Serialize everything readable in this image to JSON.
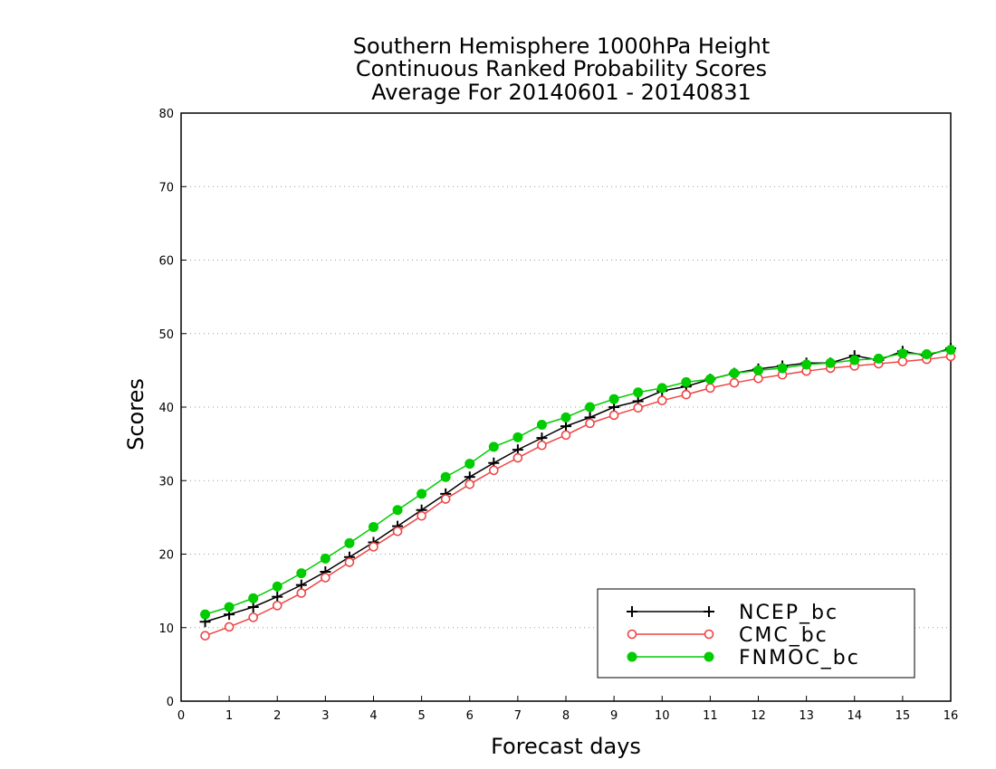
{
  "chart_data": {
    "type": "line",
    "title": [
      "Southern Hemisphere 1000hPa Height",
      "Continuous Ranked Probability Scores",
      "Average For 20140601 - 20140831"
    ],
    "xlabel": "Forecast days",
    "ylabel": "Scores",
    "xlim": [
      0,
      16
    ],
    "ylim": [
      0,
      80
    ],
    "xticks": [
      0,
      1,
      2,
      3,
      4,
      5,
      6,
      7,
      8,
      9,
      10,
      11,
      12,
      13,
      14,
      15,
      16
    ],
    "yticks": [
      0,
      10,
      20,
      30,
      40,
      50,
      60,
      70,
      80
    ],
    "grid": "horizontal dotted",
    "legend_position": "bottom-right",
    "x": [
      0.5,
      1,
      1.5,
      2,
      2.5,
      3,
      3.5,
      4,
      4.5,
      5,
      5.5,
      6,
      6.5,
      7,
      7.5,
      8,
      8.5,
      9,
      9.5,
      10,
      10.5,
      11,
      11.5,
      12,
      12.5,
      13,
      13.5,
      14,
      14.5,
      15,
      15.5,
      16
    ],
    "series": [
      {
        "name": "NCEP_bc",
        "color": "#000000",
        "marker": "plus",
        "values": [
          10.8,
          11.8,
          12.8,
          14.2,
          15.8,
          17.6,
          19.6,
          21.6,
          23.8,
          26.0,
          28.2,
          30.5,
          32.4,
          34.2,
          35.8,
          37.4,
          38.6,
          40.0,
          40.8,
          42.2,
          42.8,
          43.8,
          44.6,
          45.2,
          45.6,
          46.0,
          46.0,
          47.0,
          46.4,
          47.6,
          47.0,
          48.0
        ]
      },
      {
        "name": "CMC_bc",
        "color": "#ee4444",
        "marker": "open-circle",
        "values": [
          8.9,
          10.1,
          11.4,
          13.0,
          14.7,
          16.8,
          18.9,
          21.0,
          23.1,
          25.2,
          27.5,
          29.5,
          31.4,
          33.1,
          34.8,
          36.2,
          37.8,
          38.9,
          39.9,
          40.9,
          41.7,
          42.6,
          43.3,
          43.9,
          44.4,
          44.9,
          45.3,
          45.6,
          45.9,
          46.2,
          46.5,
          46.9
        ]
      },
      {
        "name": "FNMOC_bc",
        "color": "#00cc00",
        "marker": "filled-circle",
        "values": [
          11.8,
          12.8,
          14.0,
          15.6,
          17.4,
          19.4,
          21.5,
          23.7,
          26.0,
          28.2,
          30.5,
          32.3,
          34.6,
          35.9,
          37.6,
          38.6,
          40.0,
          41.1,
          42.0,
          42.6,
          43.4,
          43.8,
          44.6,
          45.0,
          45.3,
          45.8,
          46.0,
          46.4,
          46.6,
          47.3,
          47.2,
          47.8
        ]
      }
    ]
  }
}
